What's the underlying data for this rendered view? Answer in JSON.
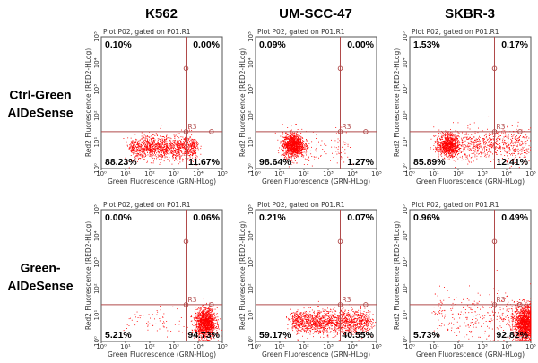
{
  "columns": [
    "K562",
    "UM-SCC-47",
    "SKBR-3"
  ],
  "rows": [
    "Ctrl-Green AlDeSense",
    "Green- AlDeSense"
  ],
  "row_lines": [
    [
      "Ctrl-Green",
      "AlDeSense"
    ],
    [
      "Green-",
      "AlDeSense"
    ]
  ],
  "colors": {
    "points": "#ff0000",
    "gate": "#b04a4a",
    "frame": "#555555"
  },
  "chart_data": {
    "type": "scatter",
    "plot_title": "Plot P02, gated on P01.R1",
    "xlabel": "Green Fluorescence (GRN-HLog)",
    "ylabel": "Red2 Fluorescence (RED2-HLog)",
    "xscale": "log",
    "yscale": "log",
    "xlim": [
      1,
      100000
    ],
    "ylim": [
      1,
      100000
    ],
    "tick_labels": [
      "10^0",
      "10^1",
      "10^2",
      "10^3",
      "10^4",
      "10^5"
    ],
    "gate": {
      "name": "R3",
      "x_threshold": 3162,
      "y_threshold": 25
    },
    "panels": [
      {
        "row": 0,
        "col": 0,
        "quadrants": {
          "UL": "0.10%",
          "UR": "0.00%",
          "LL": "88.23%",
          "LR": "11.67%"
        },
        "clusters": [
          {
            "x_log": [
              1.2,
              3.9
            ],
            "y_log": 0.8,
            "y_sd": 0.22,
            "n": 1400
          }
        ]
      },
      {
        "row": 0,
        "col": 1,
        "quadrants": {
          "UL": "0.09%",
          "UR": "0.00%",
          "LL": "98.64%",
          "LR": "1.27%"
        },
        "clusters": [
          {
            "x_log": 1.55,
            "x_sd": 0.22,
            "y_log": 0.9,
            "y_sd": 0.22,
            "n": 1200
          },
          {
            "x_log": [
              1.0,
              3.8
            ],
            "y_log": 0.8,
            "y_sd": 0.3,
            "n": 150
          }
        ]
      },
      {
        "row": 0,
        "col": 2,
        "quadrants": {
          "UL": "1.53%",
          "UR": "0.17%",
          "LL": "85.89%",
          "LR": "12.41%"
        },
        "clusters": [
          {
            "x_log": 1.6,
            "x_sd": 0.2,
            "y_log": 0.9,
            "y_sd": 0.2,
            "n": 700
          },
          {
            "x_log": [
              1.0,
              4.9
            ],
            "y_log": 0.9,
            "y_sd": 0.3,
            "n": 900
          }
        ]
      },
      {
        "row": 1,
        "col": 0,
        "quadrants": {
          "UL": "0.00%",
          "UR": "0.06%",
          "LL": "5.21%",
          "LR": "94.73%"
        },
        "clusters": [
          {
            "x_log": 4.3,
            "x_sd": 0.2,
            "y_log": 0.7,
            "y_sd": 0.28,
            "n": 1300
          },
          {
            "x_log": [
              1.0,
              4.0
            ],
            "y_log": 0.8,
            "y_sd": 0.3,
            "n": 80
          }
        ]
      },
      {
        "row": 1,
        "col": 1,
        "quadrants": {
          "UL": "0.21%",
          "UR": "0.07%",
          "LL": "59.17%",
          "LR": "40.55%"
        },
        "clusters": [
          {
            "x_log": [
              1.5,
              4.7
            ],
            "y_log": 0.75,
            "y_sd": 0.22,
            "n": 1600
          }
        ]
      },
      {
        "row": 1,
        "col": 2,
        "quadrants": {
          "UL": "0.96%",
          "UR": "0.49%",
          "LL": "5.73%",
          "LR": "92.82%"
        },
        "clusters": [
          {
            "x_log": 4.75,
            "x_sd": 0.22,
            "y_log": 0.7,
            "y_sd": 0.35,
            "n": 1500
          },
          {
            "x_log": [
              1.0,
              4.4
            ],
            "y_log": 1.0,
            "y_sd": 0.45,
            "n": 300
          }
        ]
      }
    ]
  }
}
